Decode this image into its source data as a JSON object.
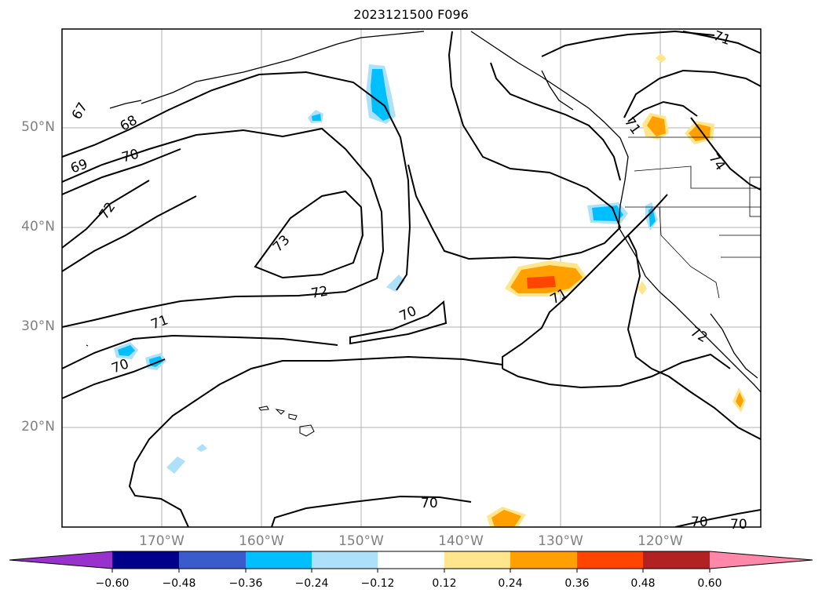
{
  "title": "2023121500 F096",
  "axes": {
    "lat_ticks": [
      "50°N",
      "40°N",
      "30°N",
      "20°N"
    ],
    "lon_ticks": [
      "170°W",
      "160°W",
      "150°W",
      "140°W",
      "130°W",
      "120°W"
    ]
  },
  "contour_labels": [
    "67",
    "68",
    "69",
    "70",
    "72",
    "73",
    "72",
    "71",
    "70",
    "71",
    "70",
    "71",
    "70",
    "71",
    "72",
    "74",
    "70",
    "70"
  ],
  "colorbar": {
    "ticks": [
      "−0.60",
      "−0.48",
      "−0.36",
      "−0.24",
      "−0.12",
      "0.12",
      "0.24",
      "0.36",
      "0.48",
      "0.60"
    ],
    "colors": [
      "#9932CC",
      "#00008B",
      "#3A5BCC",
      "#00BFFF",
      "#ADE1FA",
      "#FFFFFF",
      "#FFE68C",
      "#FFA000",
      "#FF4500",
      "#B22222",
      "#FF88AA"
    ]
  }
}
